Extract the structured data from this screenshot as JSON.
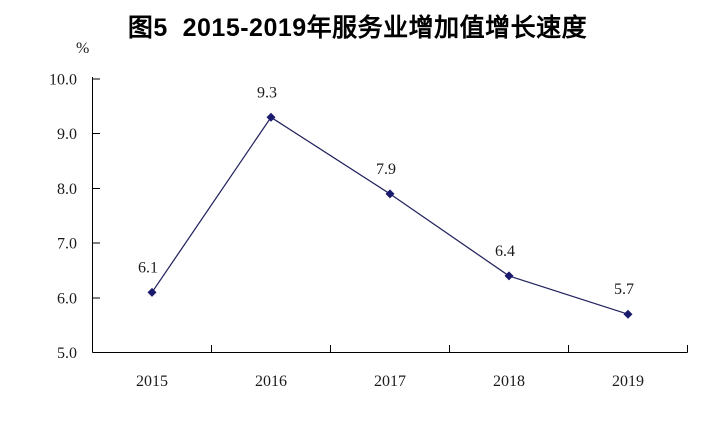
{
  "chart_data": {
    "type": "line",
    "title": "图5  2015-2019年服务业增加值增长速度",
    "unit_label": "%",
    "categories": [
      "2015",
      "2016",
      "2017",
      "2018",
      "2019"
    ],
    "series": [
      {
        "name": "服务业增加值增长速度",
        "values": [
          6.1,
          9.3,
          7.9,
          6.4,
          5.7
        ]
      }
    ],
    "data_labels": [
      "6.1",
      "9.3",
      "7.9",
      "6.4",
      "5.7"
    ],
    "ytick_labels": [
      "5.0",
      "6.0",
      "7.0",
      "8.0",
      "9.0",
      "10.0"
    ],
    "ylim": [
      5.0,
      10.0
    ],
    "ytick_step": 1.0,
    "xlabel": "",
    "ylabel": "%",
    "grid": false,
    "legend": "none",
    "marker": "diamond",
    "line_color": "#23235f",
    "marker_color": "#1a1a6e",
    "axis_color": "#000000",
    "text_color": "#1b1b1b"
  }
}
